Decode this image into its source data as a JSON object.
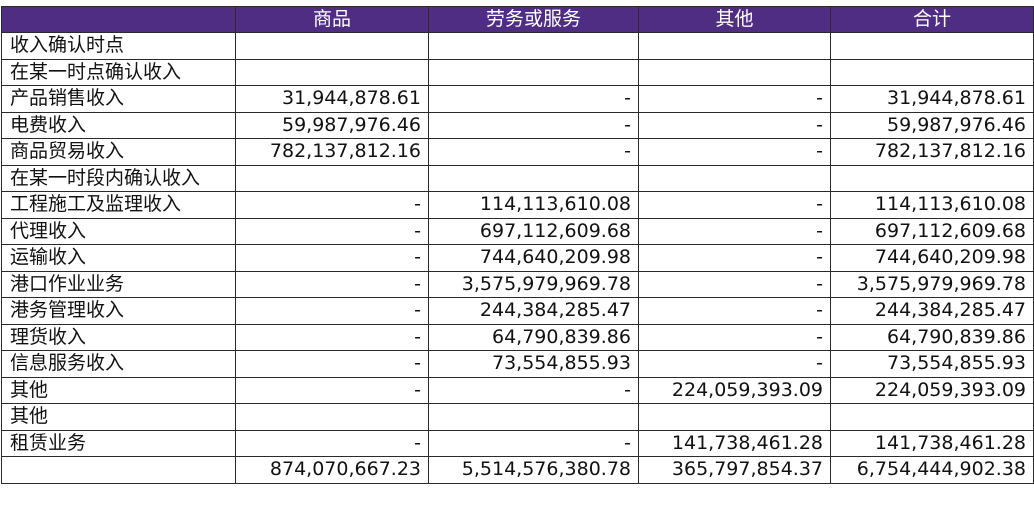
{
  "table": {
    "header_color": "#4f2d83",
    "columns": [
      "",
      "商品",
      "劳务或服务",
      "其他",
      "合计"
    ],
    "rows": [
      {
        "label": "收入确认时点",
        "goods": "",
        "services": "",
        "other": "",
        "total": ""
      },
      {
        "label": "在某一时点确认收入",
        "goods": "",
        "services": "",
        "other": "",
        "total": ""
      },
      {
        "label": "产品销售收入",
        "goods": "31,944,878.61",
        "services": "-",
        "other": "-",
        "total": "31,944,878.61"
      },
      {
        "label": "电费收入",
        "goods": "59,987,976.46",
        "services": "-",
        "other": "-",
        "total": "59,987,976.46"
      },
      {
        "label": "商品贸易收入",
        "goods": "782,137,812.16",
        "services": "-",
        "other": "-",
        "total": "782,137,812.16"
      },
      {
        "label": "在某一时段内确认收入",
        "goods": "",
        "services": "",
        "other": "",
        "total": ""
      },
      {
        "label": "工程施工及监理收入",
        "goods": "-",
        "services": "114,113,610.08",
        "other": "-",
        "total": "114,113,610.08"
      },
      {
        "label": "代理收入",
        "goods": "-",
        "services": "697,112,609.68",
        "other": "-",
        "total": "697,112,609.68"
      },
      {
        "label": "运输收入",
        "goods": "-",
        "services": "744,640,209.98",
        "other": "-",
        "total": "744,640,209.98"
      },
      {
        "label": "港口作业业务",
        "goods": "-",
        "services": "3,575,979,969.78",
        "other": "-",
        "total": "3,575,979,969.78"
      },
      {
        "label": "港务管理收入",
        "goods": "-",
        "services": "244,384,285.47",
        "other": "-",
        "total": "244,384,285.47"
      },
      {
        "label": "理货收入",
        "goods": "-",
        "services": "64,790,839.86",
        "other": "-",
        "total": "64,790,839.86"
      },
      {
        "label": "信息服务收入",
        "goods": "-",
        "services": "73,554,855.93",
        "other": "-",
        "total": "73,554,855.93"
      },
      {
        "label": "其他",
        "goods": "-",
        "services": "-",
        "other": "224,059,393.09",
        "total": "224,059,393.09"
      },
      {
        "label": "其他",
        "goods": "",
        "services": "",
        "other": "",
        "total": ""
      },
      {
        "label": "租赁业务",
        "goods": "-",
        "services": "-",
        "other": "141,738,461.28",
        "total": "141,738,461.28"
      },
      {
        "label": "",
        "goods": "874,070,667.23",
        "services": "5,514,576,380.78",
        "other": "365,797,854.37",
        "total": "6,754,444,902.38"
      }
    ]
  }
}
